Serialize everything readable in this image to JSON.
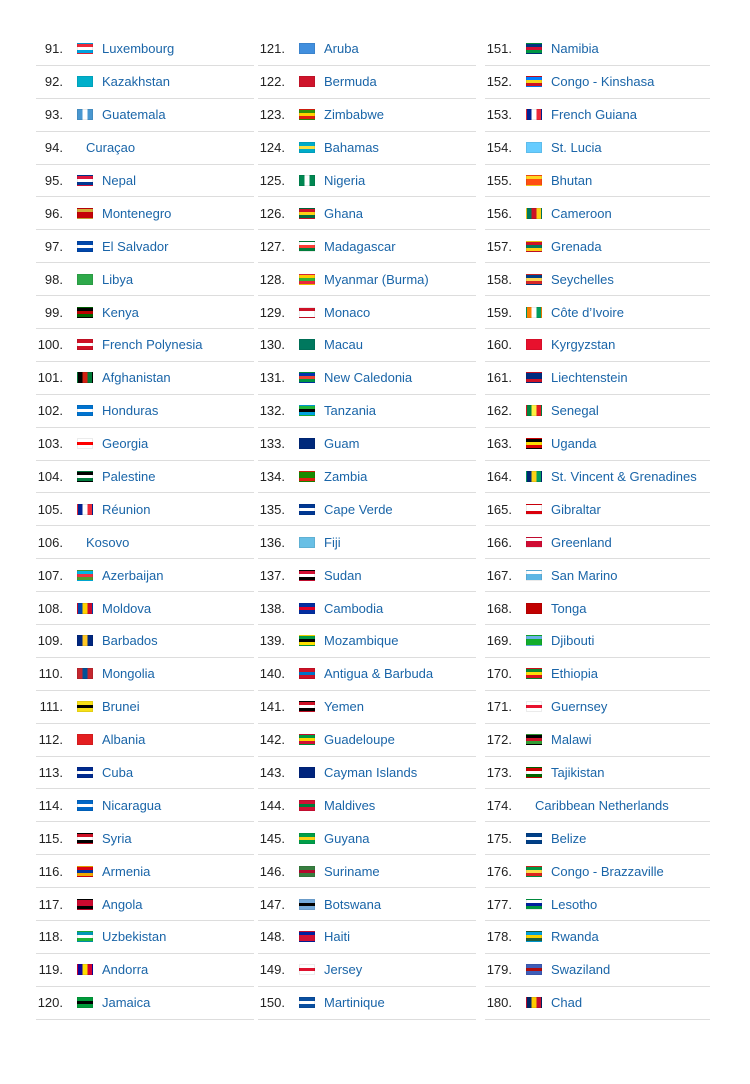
{
  "columns": [
    [
      {
        "rank": "91.",
        "name": "Luxembourg",
        "flag": [
          "#ed2939",
          "#ffffff",
          "#00a1de"
        ]
      },
      {
        "rank": "92.",
        "name": "Kazakhstan",
        "flag": [
          "#00afca",
          "#00afca",
          "#00afca"
        ]
      },
      {
        "rank": "93.",
        "name": "Guatemala",
        "flag": [
          "#4997d0",
          "#ffffff",
          "#4997d0"
        ],
        "vertical": true
      },
      {
        "rank": "94.",
        "name": "Curaçao",
        "flag": null
      },
      {
        "rank": "95.",
        "name": "Nepal",
        "flag": [
          "#dc143c",
          "#ffffff",
          "#003893"
        ]
      },
      {
        "rank": "96.",
        "name": "Montenegro",
        "flag": [
          "#d3ae3b",
          "#c40308",
          "#c40308"
        ]
      },
      {
        "rank": "97.",
        "name": "El Salvador",
        "flag": [
          "#0047ab",
          "#ffffff",
          "#0047ab"
        ]
      },
      {
        "rank": "98.",
        "name": "Libya",
        "flag": [
          "#2ea94a",
          "#2ea94a",
          "#2ea94a"
        ]
      },
      {
        "rank": "99.",
        "name": "Kenya",
        "flag": [
          "#000000",
          "#bb0000",
          "#006600"
        ]
      },
      {
        "rank": "100.",
        "name": "French Polynesia",
        "flag": [
          "#ce1126",
          "#ffffff",
          "#ce1126"
        ]
      },
      {
        "rank": "101.",
        "name": "Afghanistan",
        "flag": [
          "#000000",
          "#d32011",
          "#007a36"
        ],
        "vertical": true
      },
      {
        "rank": "102.",
        "name": "Honduras",
        "flag": [
          "#0073cf",
          "#ffffff",
          "#0073cf"
        ]
      },
      {
        "rank": "103.",
        "name": "Georgia",
        "flag": [
          "#ffffff",
          "#ff0000",
          "#ffffff"
        ]
      },
      {
        "rank": "104.",
        "name": "Palestine",
        "flag": [
          "#000000",
          "#ffffff",
          "#007a3d"
        ]
      },
      {
        "rank": "105.",
        "name": "Réunion",
        "flag": [
          "#002395",
          "#ffffff",
          "#ed2939"
        ],
        "vertical": true
      },
      {
        "rank": "106.",
        "name": "Kosovo",
        "flag": null
      },
      {
        "rank": "107.",
        "name": "Azerbaijan",
        "flag": [
          "#00b5e2",
          "#ef3340",
          "#509e2f"
        ]
      },
      {
        "rank": "108.",
        "name": "Moldova",
        "flag": [
          "#0046ae",
          "#ffd200",
          "#cc092f"
        ],
        "vertical": true
      },
      {
        "rank": "109.",
        "name": "Barbados",
        "flag": [
          "#00267f",
          "#ffc726",
          "#00267f"
        ],
        "vertical": true
      },
      {
        "rank": "110.",
        "name": "Mongolia",
        "flag": [
          "#c4272f",
          "#015197",
          "#c4272f"
        ],
        "vertical": true
      },
      {
        "rank": "111.",
        "name": "Brunei",
        "flag": [
          "#f7e017",
          "#000000",
          "#f7e017"
        ]
      },
      {
        "rank": "112.",
        "name": "Albania",
        "flag": [
          "#e41e20",
          "#e41e20",
          "#e41e20"
        ]
      },
      {
        "rank": "113.",
        "name": "Cuba",
        "flag": [
          "#002a8f",
          "#ffffff",
          "#002a8f"
        ]
      },
      {
        "rank": "114.",
        "name": "Nicaragua",
        "flag": [
          "#0067c6",
          "#ffffff",
          "#0067c6"
        ]
      },
      {
        "rank": "115.",
        "name": "Syria",
        "flag": [
          "#ce1126",
          "#ffffff",
          "#000000"
        ]
      },
      {
        "rank": "116.",
        "name": "Armenia",
        "flag": [
          "#d90012",
          "#0033a0",
          "#f2a800"
        ]
      },
      {
        "rank": "117.",
        "name": "Angola",
        "flag": [
          "#cc092f",
          "#cc092f",
          "#000000"
        ]
      },
      {
        "rank": "118.",
        "name": "Uzbekistan",
        "flag": [
          "#0099b5",
          "#ffffff",
          "#1eb53a"
        ]
      },
      {
        "rank": "119.",
        "name": "Andorra",
        "flag": [
          "#10069f",
          "#fedf00",
          "#d50032"
        ],
        "vertical": true
      },
      {
        "rank": "120.",
        "name": "Jamaica",
        "flag": [
          "#009b3a",
          "#000000",
          "#009b3a"
        ]
      }
    ],
    [
      {
        "rank": "121.",
        "name": "Aruba",
        "flag": [
          "#418fde",
          "#418fde",
          "#418fde"
        ]
      },
      {
        "rank": "122.",
        "name": "Bermuda",
        "flag": [
          "#cf142b",
          "#cf142b",
          "#cf142b"
        ]
      },
      {
        "rank": "123.",
        "name": "Zimbabwe",
        "flag": [
          "#319208",
          "#ffd200",
          "#de2010"
        ]
      },
      {
        "rank": "124.",
        "name": "Bahamas",
        "flag": [
          "#00abc9",
          "#fae042",
          "#00abc9"
        ]
      },
      {
        "rank": "125.",
        "name": "Nigeria",
        "flag": [
          "#008751",
          "#ffffff",
          "#008751"
        ],
        "vertical": true
      },
      {
        "rank": "126.",
        "name": "Ghana",
        "flag": [
          "#ce1126",
          "#fcd116",
          "#006b3f"
        ]
      },
      {
        "rank": "127.",
        "name": "Madagascar",
        "flag": [
          "#ffffff",
          "#fc3d32",
          "#007e3a"
        ]
      },
      {
        "rank": "128.",
        "name": "Myanmar (Burma)",
        "flag": [
          "#fecb00",
          "#34b233",
          "#ea2839"
        ]
      },
      {
        "rank": "129.",
        "name": "Monaco",
        "flag": [
          "#ce1126",
          "#ffffff",
          "#ffffff"
        ]
      },
      {
        "rank": "130.",
        "name": "Macau",
        "flag": [
          "#00785e",
          "#00785e",
          "#00785e"
        ]
      },
      {
        "rank": "131.",
        "name": "New Caledonia",
        "flag": [
          "#0035ad",
          "#ed4135",
          "#009543"
        ]
      },
      {
        "rank": "132.",
        "name": "Tanzania",
        "flag": [
          "#1eb53a",
          "#000000",
          "#00a3dd"
        ]
      },
      {
        "rank": "133.",
        "name": "Guam",
        "flag": [
          "#00297b",
          "#00297b",
          "#00297b"
        ]
      },
      {
        "rank": "134.",
        "name": "Zambia",
        "flag": [
          "#198a00",
          "#198a00",
          "#de2010"
        ]
      },
      {
        "rank": "135.",
        "name": "Cape Verde",
        "flag": [
          "#003893",
          "#ffffff",
          "#003893"
        ]
      },
      {
        "rank": "136.",
        "name": "Fiji",
        "flag": [
          "#68bfe5",
          "#68bfe5",
          "#68bfe5"
        ]
      },
      {
        "rank": "137.",
        "name": "Sudan",
        "flag": [
          "#d21034",
          "#ffffff",
          "#000000"
        ]
      },
      {
        "rank": "138.",
        "name": "Cambodia",
        "flag": [
          "#032ea1",
          "#e00025",
          "#032ea1"
        ]
      },
      {
        "rank": "139.",
        "name": "Mozambique",
        "flag": [
          "#009a44",
          "#000000",
          "#fce100"
        ]
      },
      {
        "rank": "140.",
        "name": "Antigua & Barbuda",
        "flag": [
          "#ce1126",
          "#0072c6",
          "#ce1126"
        ]
      },
      {
        "rank": "141.",
        "name": "Yemen",
        "flag": [
          "#ce1126",
          "#ffffff",
          "#000000"
        ]
      },
      {
        "rank": "142.",
        "name": "Guadeloupe",
        "flag": [
          "#009a3d",
          "#ffd700",
          "#d21034"
        ]
      },
      {
        "rank": "143.",
        "name": "Cayman Islands",
        "flag": [
          "#00247d",
          "#00247d",
          "#00247d"
        ]
      },
      {
        "rank": "144.",
        "name": "Maldives",
        "flag": [
          "#d21034",
          "#007e3a",
          "#d21034"
        ]
      },
      {
        "rank": "145.",
        "name": "Guyana",
        "flag": [
          "#009e49",
          "#fcd116",
          "#009e49"
        ]
      },
      {
        "rank": "146.",
        "name": "Suriname",
        "flag": [
          "#377e3f",
          "#b40a2d",
          "#377e3f"
        ]
      },
      {
        "rank": "147.",
        "name": "Botswana",
        "flag": [
          "#75aadb",
          "#000000",
          "#75aadb"
        ]
      },
      {
        "rank": "148.",
        "name": "Haiti",
        "flag": [
          "#00209f",
          "#d21034",
          "#d21034"
        ]
      },
      {
        "rank": "149.",
        "name": "Jersey",
        "flag": [
          "#ffffff",
          "#df112d",
          "#ffffff"
        ]
      },
      {
        "rank": "150.",
        "name": "Martinique",
        "flag": [
          "#0a4fa0",
          "#ffffff",
          "#0a4fa0"
        ]
      }
    ],
    [
      {
        "rank": "151.",
        "name": "Namibia",
        "flag": [
          "#003580",
          "#d21034",
          "#009543"
        ]
      },
      {
        "rank": "152.",
        "name": "Congo - Kinshasa",
        "flag": [
          "#007fff",
          "#f7d618",
          "#ce1021"
        ]
      },
      {
        "rank": "153.",
        "name": "French Guiana",
        "flag": [
          "#002395",
          "#ffffff",
          "#ed2939"
        ],
        "vertical": true
      },
      {
        "rank": "154.",
        "name": "St. Lucia",
        "flag": [
          "#66ccff",
          "#66ccff",
          "#66ccff"
        ]
      },
      {
        "rank": "155.",
        "name": "Bhutan",
        "flag": [
          "#ffd520",
          "#ff4e12",
          "#ff4e12"
        ]
      },
      {
        "rank": "156.",
        "name": "Cameroon",
        "flag": [
          "#007a5e",
          "#ce1126",
          "#fcd116"
        ],
        "vertical": true
      },
      {
        "rank": "157.",
        "name": "Grenada",
        "flag": [
          "#ce1126",
          "#007a5e",
          "#fcd116"
        ]
      },
      {
        "rank": "158.",
        "name": "Seychelles",
        "flag": [
          "#003f87",
          "#fcd856",
          "#d62828"
        ]
      },
      {
        "rank": "159.",
        "name": "Côte d’Ivoire",
        "flag": [
          "#f77f00",
          "#ffffff",
          "#009e60"
        ],
        "vertical": true
      },
      {
        "rank": "160.",
        "name": "Kyrgyzstan",
        "flag": [
          "#e8112d",
          "#e8112d",
          "#e8112d"
        ]
      },
      {
        "rank": "161.",
        "name": "Liechtenstein",
        "flag": [
          "#002b7f",
          "#002b7f",
          "#ce1126"
        ]
      },
      {
        "rank": "162.",
        "name": "Senegal",
        "flag": [
          "#00853f",
          "#fdef42",
          "#e31b23"
        ],
        "vertical": true
      },
      {
        "rank": "163.",
        "name": "Uganda",
        "flag": [
          "#000000",
          "#fcdc04",
          "#d90000"
        ]
      },
      {
        "rank": "164.",
        "name": "St. Vincent & Grenadines",
        "flag": [
          "#002674",
          "#fcd116",
          "#009e60"
        ],
        "vertical": true
      },
      {
        "rank": "165.",
        "name": "Gibraltar",
        "flag": [
          "#ffffff",
          "#ffffff",
          "#da000c"
        ]
      },
      {
        "rank": "166.",
        "name": "Greenland",
        "flag": [
          "#ffffff",
          "#d00c33",
          "#d00c33"
        ]
      },
      {
        "rank": "167.",
        "name": "San Marino",
        "flag": [
          "#ffffff",
          "#5eb6e4",
          "#5eb6e4"
        ]
      },
      {
        "rank": "168.",
        "name": "Tonga",
        "flag": [
          "#c10000",
          "#c10000",
          "#c10000"
        ]
      },
      {
        "rank": "169.",
        "name": "Djibouti",
        "flag": [
          "#6ab2e7",
          "#12ad2b",
          "#12ad2b"
        ]
      },
      {
        "rank": "170.",
        "name": "Ethiopia",
        "flag": [
          "#078930",
          "#fcdd09",
          "#da121a"
        ]
      },
      {
        "rank": "171.",
        "name": "Guernsey",
        "flag": [
          "#ffffff",
          "#e8112d",
          "#ffffff"
        ]
      },
      {
        "rank": "172.",
        "name": "Malawi",
        "flag": [
          "#000000",
          "#ce1126",
          "#339e35"
        ]
      },
      {
        "rank": "173.",
        "name": "Tajikistan",
        "flag": [
          "#cc0000",
          "#ffffff",
          "#006600"
        ]
      },
      {
        "rank": "174.",
        "name": "Caribbean Netherlands",
        "flag": null
      },
      {
        "rank": "175.",
        "name": "Belize",
        "flag": [
          "#003f87",
          "#ffffff",
          "#003f87"
        ]
      },
      {
        "rank": "176.",
        "name": "Congo - Brazzaville",
        "flag": [
          "#009543",
          "#fbde4a",
          "#dc241f"
        ]
      },
      {
        "rank": "177.",
        "name": "Lesotho",
        "flag": [
          "#ffffff",
          "#00209f",
          "#009543"
        ]
      },
      {
        "rank": "178.",
        "name": "Rwanda",
        "flag": [
          "#00a1de",
          "#fad201",
          "#20603d"
        ]
      },
      {
        "rank": "179.",
        "name": "Swaziland",
        "flag": [
          "#3e5eb9",
          "#b10c0c",
          "#3e5eb9"
        ]
      },
      {
        "rank": "180.",
        "name": "Chad",
        "flag": [
          "#002664",
          "#fecb00",
          "#c60c30"
        ],
        "vertical": true
      }
    ]
  ]
}
